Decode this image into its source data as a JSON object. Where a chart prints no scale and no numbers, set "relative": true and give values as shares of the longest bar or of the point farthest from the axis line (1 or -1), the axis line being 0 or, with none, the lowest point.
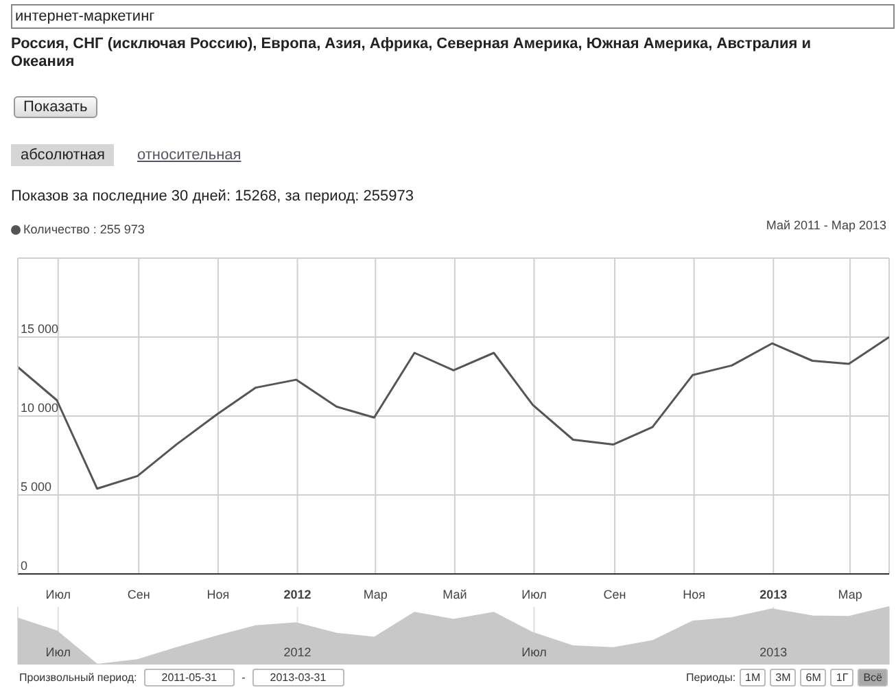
{
  "chart_data": [
    {
      "type": "line",
      "title": "интернет-маркетинг",
      "subtitle": "Россия, СНГ (исключая Россию), Европа, Азия, Африка, Северная Америка, Южная Америка, Австралия и Океания",
      "x": [
        "2011-05-31",
        "2011-06-30",
        "2011-07-31",
        "2011-08-31",
        "2011-09-30",
        "2011-10-31",
        "2011-11-30",
        "2011-12-31",
        "2012-01-31",
        "2012-02-29",
        "2012-03-31",
        "2012-04-30",
        "2012-05-31",
        "2012-06-30",
        "2012-07-31",
        "2012-08-31",
        "2012-09-30",
        "2012-10-31",
        "2012-11-30",
        "2012-12-31",
        "2013-01-31",
        "2013-02-28",
        "2013-03-31"
      ],
      "series": [
        {
          "name": "Количество : 255 973",
          "color": "#555555",
          "values": [
            13100,
            11000,
            5400,
            6200,
            8200,
            10100,
            11800,
            12300,
            10600,
            9900,
            14000,
            12900,
            14000,
            10700,
            8500,
            8200,
            9300,
            12600,
            13200,
            14600,
            13500,
            13300,
            15000
          ]
        }
      ],
      "xlim": [
        "2011-05-31",
        "2013-03-31"
      ],
      "xticks": [
        {
          "value": "2011-07-01",
          "label": "Июл"
        },
        {
          "value": "2011-09-01",
          "label": "Сен"
        },
        {
          "value": "2011-11-01",
          "label": "Ноя"
        },
        {
          "value": "2012-01-01",
          "label": "2012"
        },
        {
          "value": "2012-03-01",
          "label": "Мар"
        },
        {
          "value": "2012-05-01",
          "label": "Май"
        },
        {
          "value": "2012-07-01",
          "label": "Июл"
        },
        {
          "value": "2012-09-01",
          "label": "Сен"
        },
        {
          "value": "2012-11-01",
          "label": "Ноя"
        },
        {
          "value": "2013-01-01",
          "label": "2013"
        },
        {
          "value": "2013-03-01",
          "label": "Мар"
        }
      ],
      "ylim": [
        0,
        20000
      ],
      "yticks": [
        0,
        {
          "value": 5000,
          "label": "5 000"
        },
        {
          "value": 10000,
          "label": "10 000"
        },
        {
          "value": 15000,
          "label": "15 000"
        }
      ],
      "grid": true,
      "legend": "top left",
      "marker": "none",
      "line_style": "solid",
      "annotations": [
        "Показать",
        "абсолютная",
        "относительная",
        "Показов за последние 30 дней: 15268, за период: 255973",
        "Май 2011 - Мар 2013"
      ]
    },
    {
      "type": "area",
      "relative": true,
      "x": [
        "2011-05-31",
        "2011-06-30",
        "2011-07-31",
        "2011-08-31",
        "2011-09-30",
        "2011-10-31",
        "2011-11-30",
        "2011-12-31",
        "2012-01-31",
        "2012-02-29",
        "2012-03-31",
        "2012-04-30",
        "2012-05-31",
        "2012-06-30",
        "2012-07-31",
        "2012-08-31",
        "2012-09-30",
        "2012-10-31",
        "2012-11-30",
        "2012-12-31",
        "2013-01-31",
        "2013-02-28",
        "2013-03-31"
      ],
      "series": [
        {
          "color": "#c8c8c8",
          "values": [
            0.8,
            0.58,
            0,
            0.08,
            0.29,
            0.49,
            0.67,
            0.72,
            0.54,
            0.47,
            0.9,
            0.78,
            0.9,
            0.55,
            0.32,
            0.29,
            0.41,
            0.75,
            0.81,
            0.96,
            0.84,
            0.83,
            1
          ]
        }
      ],
      "xlim": [
        "2011-05-31",
        "2013-03-31"
      ],
      "xticks": [
        {
          "value": "2011-07-01",
          "label": "Июл"
        },
        {
          "value": "2012-01-01",
          "label": "2012"
        },
        {
          "value": "2012-07-01",
          "label": "Июл"
        },
        {
          "value": "2013-01-01",
          "label": "2013"
        }
      ],
      "tick_labels": "x",
      "grid": "x",
      "annotations": [
        "Произвольный период:",
        "2011-05-31",
        "-",
        "2013-03-31",
        "Периоды:",
        "1М",
        "3М",
        "6М",
        "1Г",
        "Всё"
      ]
    }
  ]
}
